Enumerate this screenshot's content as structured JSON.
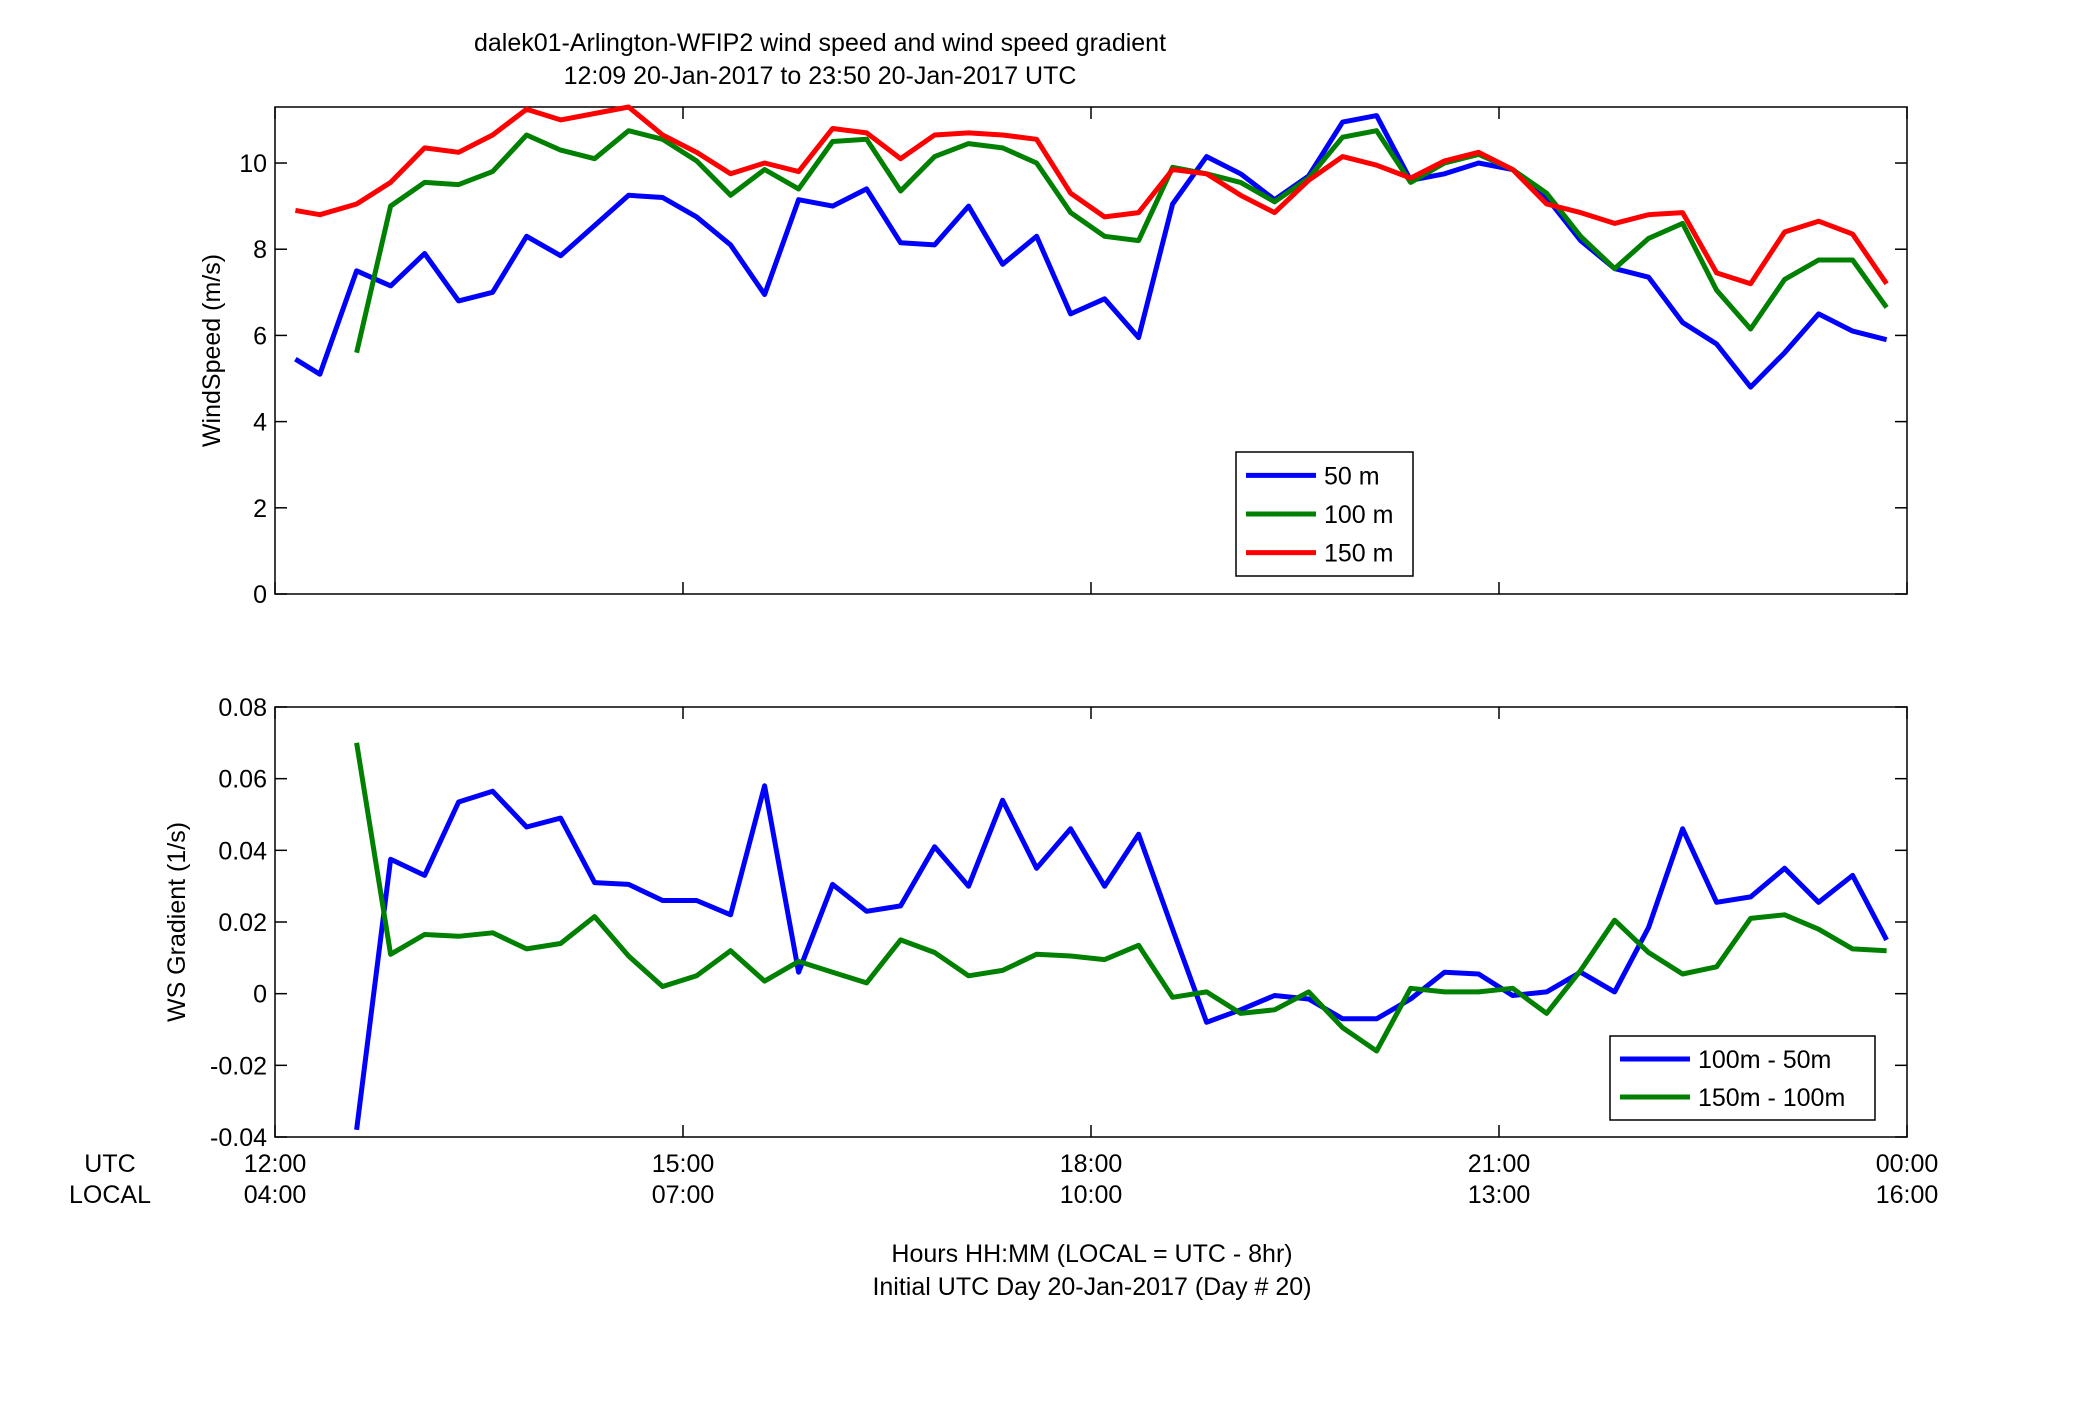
{
  "title": {
    "line1": "dalek01-Arlington-WFIP2  wind speed and wind speed gradient",
    "line2": "12:09 20-Jan-2017 to 23:50 20-Jan-2017  UTC"
  },
  "xaxis": {
    "row_labels": [
      "UTC",
      "LOCAL"
    ],
    "utc_ticks": [
      "12:00",
      "15:00",
      "18:00",
      "21:00",
      "00:00"
    ],
    "local_ticks": [
      "04:00",
      "07:00",
      "10:00",
      "13:00",
      "16:00"
    ],
    "label_line1": "Hours HH:MM  (LOCAL = UTC - 8hr)",
    "label_line2": "Initial UTC Day 20-Jan-2017 (Day # 20)"
  },
  "colors": {
    "blue": "#0000ff",
    "green": "#008000",
    "red": "#ff0000"
  },
  "chart_data": [
    {
      "type": "line",
      "ylabel": "WindSpeed (m/s)",
      "ylim": [
        0,
        11.3
      ],
      "yticks": [
        0,
        2,
        4,
        6,
        8,
        10
      ],
      "yticklabels": [
        "0",
        "2",
        "4",
        "6",
        "8",
        "10"
      ],
      "xlim": [
        12.0,
        24.0
      ],
      "legend_position": "lower-right",
      "series": [
        {
          "name": "50 m",
          "color": "#0000ff",
          "x": [
            12.15,
            12.33,
            12.6,
            12.85,
            13.1,
            13.35,
            13.6,
            13.85,
            14.1,
            14.35,
            14.6,
            14.85,
            15.1,
            15.35,
            15.6,
            15.85,
            16.1,
            16.35,
            16.6,
            16.85,
            17.1,
            17.35,
            17.6,
            17.85,
            18.1,
            18.35,
            18.6,
            18.85,
            19.1,
            19.35,
            19.6,
            19.85,
            20.1,
            20.35,
            20.6,
            20.85,
            21.1,
            21.35,
            21.6,
            21.85,
            22.1,
            22.35,
            22.6,
            22.85,
            23.1,
            23.35,
            23.6,
            23.85
          ],
          "values": [
            5.45,
            5.1,
            7.5,
            7.15,
            7.9,
            6.8,
            7.0,
            8.3,
            7.85,
            8.55,
            9.25,
            9.2,
            8.75,
            8.1,
            6.95,
            9.15,
            9.0,
            9.4,
            8.15,
            8.1,
            9.0,
            7.65,
            8.3,
            6.5,
            6.85,
            5.95,
            9.05,
            10.15,
            9.75,
            9.15,
            9.7,
            10.95,
            11.1,
            9.6,
            9.75,
            10.0,
            9.85,
            9.2,
            8.2,
            7.55,
            7.35,
            6.3,
            5.8,
            4.8,
            5.6,
            6.5,
            6.1,
            5.9
          ]
        },
        {
          "name": "100 m",
          "color": "#008000",
          "x": [
            12.6,
            12.85,
            13.1,
            13.35,
            13.6,
            13.85,
            14.1,
            14.35,
            14.6,
            14.85,
            15.1,
            15.35,
            15.6,
            15.85,
            16.1,
            16.35,
            16.6,
            16.85,
            17.1,
            17.35,
            17.6,
            17.85,
            18.1,
            18.35,
            18.6,
            18.85,
            19.1,
            19.35,
            19.6,
            19.85,
            20.1,
            20.35,
            20.6,
            20.85,
            21.1,
            21.35,
            21.6,
            21.85,
            22.1,
            22.35,
            22.6,
            22.85,
            23.1,
            23.35,
            23.6,
            23.85
          ],
          "values": [
            5.6,
            9.0,
            9.55,
            9.5,
            9.8,
            10.65,
            10.3,
            10.1,
            10.75,
            10.55,
            10.05,
            9.25,
            9.85,
            9.4,
            10.5,
            10.55,
            9.35,
            10.15,
            10.45,
            10.35,
            10.0,
            8.85,
            8.3,
            8.2,
            9.9,
            9.75,
            9.55,
            9.1,
            9.65,
            10.6,
            10.75,
            9.55,
            10.0,
            10.2,
            9.85,
            9.3,
            8.3,
            7.55,
            8.25,
            8.6,
            7.05,
            6.15,
            7.3,
            7.75,
            7.75,
            6.65
          ]
        },
        {
          "name": "150 m",
          "color": "#ff0000",
          "x": [
            12.15,
            12.33,
            12.6,
            12.85,
            13.1,
            13.35,
            13.6,
            13.85,
            14.1,
            14.35,
            14.6,
            14.85,
            15.1,
            15.35,
            15.6,
            15.85,
            16.1,
            16.35,
            16.6,
            16.85,
            17.1,
            17.35,
            17.6,
            17.85,
            18.1,
            18.35,
            18.6,
            18.85,
            19.1,
            19.35,
            19.6,
            19.85,
            20.1,
            20.35,
            20.6,
            20.85,
            21.1,
            21.35,
            21.6,
            21.85,
            22.1,
            22.35,
            22.6,
            22.85,
            23.1,
            23.35,
            23.6,
            23.85
          ],
          "values": [
            8.9,
            8.8,
            9.05,
            9.55,
            10.35,
            10.25,
            10.65,
            11.25,
            11.0,
            11.15,
            11.3,
            10.65,
            10.25,
            9.75,
            10.0,
            9.8,
            10.8,
            10.7,
            10.1,
            10.65,
            10.7,
            10.65,
            10.55,
            9.3,
            8.75,
            8.85,
            9.85,
            9.75,
            9.25,
            8.85,
            9.6,
            10.15,
            9.95,
            9.65,
            10.05,
            10.25,
            9.85,
            9.05,
            8.85,
            8.6,
            8.8,
            8.85,
            7.45,
            7.2,
            8.4,
            8.65,
            8.35,
            7.2
          ]
        }
      ],
      "legend": [
        "50 m",
        "100 m",
        "150 m"
      ]
    },
    {
      "type": "line",
      "ylabel": "WS Gradient (1/s)",
      "ylim": [
        -0.04,
        0.08
      ],
      "yticks": [
        -0.04,
        -0.02,
        0,
        0.02,
        0.04,
        0.06,
        0.08
      ],
      "yticklabels": [
        "-0.04",
        "-0.02",
        "0",
        "0.02",
        "0.04",
        "0.06",
        "0.08"
      ],
      "xlim": [
        12.0,
        24.0
      ],
      "legend_position": "lower-right",
      "series": [
        {
          "name": "100m - 50m",
          "color": "#0000ff",
          "x": [
            12.6,
            12.85,
            13.1,
            13.35,
            13.6,
            13.85,
            14.1,
            14.35,
            14.6,
            14.85,
            15.1,
            15.35,
            15.6,
            15.85,
            16.1,
            16.35,
            16.6,
            16.85,
            17.1,
            17.35,
            17.6,
            17.85,
            18.1,
            18.35,
            18.6,
            18.85,
            19.1,
            19.35,
            19.6,
            19.85,
            20.1,
            20.35,
            20.6,
            20.85,
            21.1,
            21.35,
            21.6,
            21.85,
            22.1,
            22.35,
            22.6,
            22.85,
            23.1,
            23.35,
            23.6,
            23.85
          ],
          "values": [
            -0.038,
            0.0375,
            0.033,
            0.0535,
            0.0565,
            0.0465,
            0.049,
            0.031,
            0.0305,
            0.026,
            0.026,
            0.022,
            0.058,
            0.006,
            0.0305,
            0.023,
            0.0245,
            0.041,
            0.03,
            0.054,
            0.035,
            0.046,
            0.03,
            0.0445,
            0.018,
            -0.008,
            -0.0045,
            -0.0005,
            -0.0015,
            -0.007,
            -0.007,
            -0.0015,
            0.006,
            0.0055,
            -0.0005,
            0.0005,
            0.006,
            0.0005,
            0.0185,
            0.046,
            0.0255,
            0.027,
            0.035,
            0.0255,
            0.033,
            0.015
          ]
        },
        {
          "name": "150m - 100m",
          "color": "#008000",
          "x": [
            12.6,
            12.85,
            13.1,
            13.35,
            13.6,
            13.85,
            14.1,
            14.35,
            14.6,
            14.85,
            15.1,
            15.35,
            15.6,
            15.85,
            16.1,
            16.35,
            16.6,
            16.85,
            17.1,
            17.35,
            17.6,
            17.85,
            18.1,
            18.35,
            18.6,
            18.85,
            19.1,
            19.35,
            19.6,
            19.85,
            20.1,
            20.35,
            20.6,
            20.85,
            21.1,
            21.35,
            21.6,
            21.85,
            22.1,
            22.35,
            22.6,
            22.85,
            23.1,
            23.35,
            23.6,
            23.85
          ],
          "values": [
            0.07,
            0.011,
            0.0165,
            0.016,
            0.017,
            0.0125,
            0.014,
            0.0215,
            0.0105,
            0.002,
            0.005,
            0.012,
            0.0035,
            0.009,
            0.006,
            0.003,
            0.015,
            0.0115,
            0.005,
            0.0065,
            0.011,
            0.0105,
            0.0095,
            0.0135,
            -0.001,
            0.0005,
            -0.0055,
            -0.0045,
            0.0005,
            -0.0095,
            -0.016,
            0.0015,
            0.0005,
            0.0005,
            0.0015,
            -0.0055,
            0.0065,
            0.0205,
            0.0115,
            0.0055,
            0.0075,
            0.021,
            0.022,
            0.018,
            0.0125,
            0.012
          ]
        }
      ],
      "legend": [
        "100m - 50m",
        "150m - 100m"
      ]
    }
  ]
}
